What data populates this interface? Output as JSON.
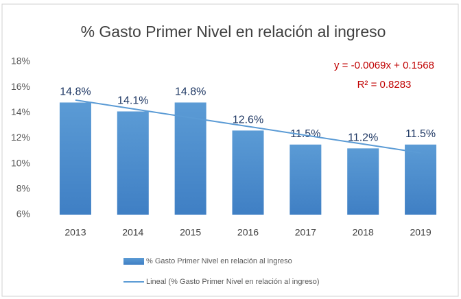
{
  "chart_data": {
    "type": "bar",
    "title": "% Gasto Primer Nivel en relación al ingreso",
    "categories": [
      "2013",
      "2014",
      "2015",
      "2016",
      "2017",
      "2018",
      "2019"
    ],
    "series": [
      {
        "name": "% Gasto Primer Nivel en relación al ingreso",
        "color": "#5b9bd5",
        "values": [
          14.8,
          14.1,
          14.8,
          12.6,
          11.5,
          11.2,
          11.5
        ],
        "value_labels": [
          "14.8%",
          "14.1%",
          "14.8%",
          "12.6%",
          "11.5%",
          "11.2%",
          "11.5%"
        ]
      },
      {
        "name": "Lineal (% Gasto Primer Nivel en relación al ingreso)",
        "color": "#5b9bd5",
        "type": "line",
        "values": [
          14.99,
          14.3,
          13.61,
          12.92,
          12.23,
          11.54,
          10.85
        ]
      }
    ],
    "annotations": [
      "y = -0.0069x + 0.1568",
      "R² = 0.8283"
    ],
    "ylim": [
      6,
      18
    ],
    "yticks": [
      {
        "value": 6,
        "label": "6%"
      },
      {
        "value": 8,
        "label": "8%"
      },
      {
        "value": 10,
        "label": "10%"
      },
      {
        "value": 12,
        "label": "12%"
      },
      {
        "value": 14,
        "label": "14%"
      },
      {
        "value": 16,
        "label": "16%"
      },
      {
        "value": 18,
        "label": "18%"
      }
    ],
    "grid": false
  }
}
